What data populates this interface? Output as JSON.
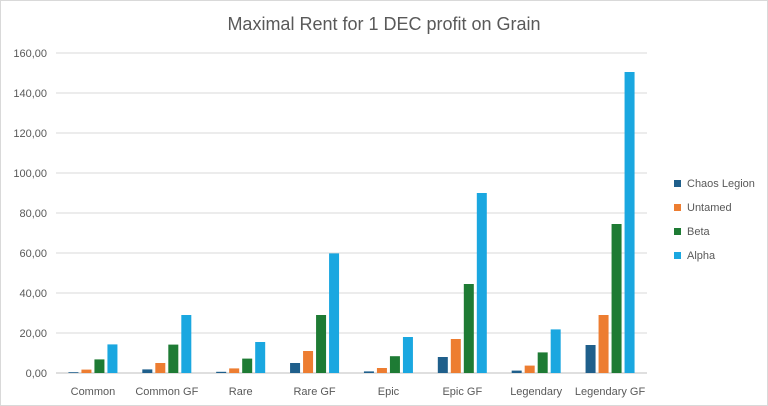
{
  "chart_data": {
    "type": "bar",
    "title": "Maximal Rent for 1 DEC profit on Grain",
    "xlabel": "",
    "ylabel": "",
    "ylim": [
      0,
      160
    ],
    "yticks": [
      "0,00",
      "20,00",
      "40,00",
      "60,00",
      "80,00",
      "100,00",
      "120,00",
      "140,00",
      "160,00"
    ],
    "grid": true,
    "legend_position": "right",
    "categories": [
      "Common",
      "Common GF",
      "Rare",
      "Rare GF",
      "Epic",
      "Epic GF",
      "Legendary",
      "Legendary GF"
    ],
    "series": [
      {
        "name": "Chaos Legion",
        "color": "#1f5f8b",
        "values": [
          0.4,
          1.8,
          0.6,
          5.0,
          0.8,
          8.0,
          1.2,
          14.0
        ]
      },
      {
        "name": "Untamed",
        "color": "#ed7d31",
        "values": [
          1.7,
          5.0,
          2.3,
          11.0,
          2.5,
          17.0,
          3.7,
          29.0
        ]
      },
      {
        "name": "Beta",
        "color": "#1e7b34",
        "values": [
          6.8,
          14.2,
          7.2,
          29.0,
          8.4,
          44.5,
          10.3,
          74.5
        ]
      },
      {
        "name": "Alpha",
        "color": "#1aa7e0",
        "values": [
          14.3,
          29.0,
          15.5,
          59.8,
          18.0,
          90.0,
          21.8,
          150.5
        ]
      }
    ]
  }
}
